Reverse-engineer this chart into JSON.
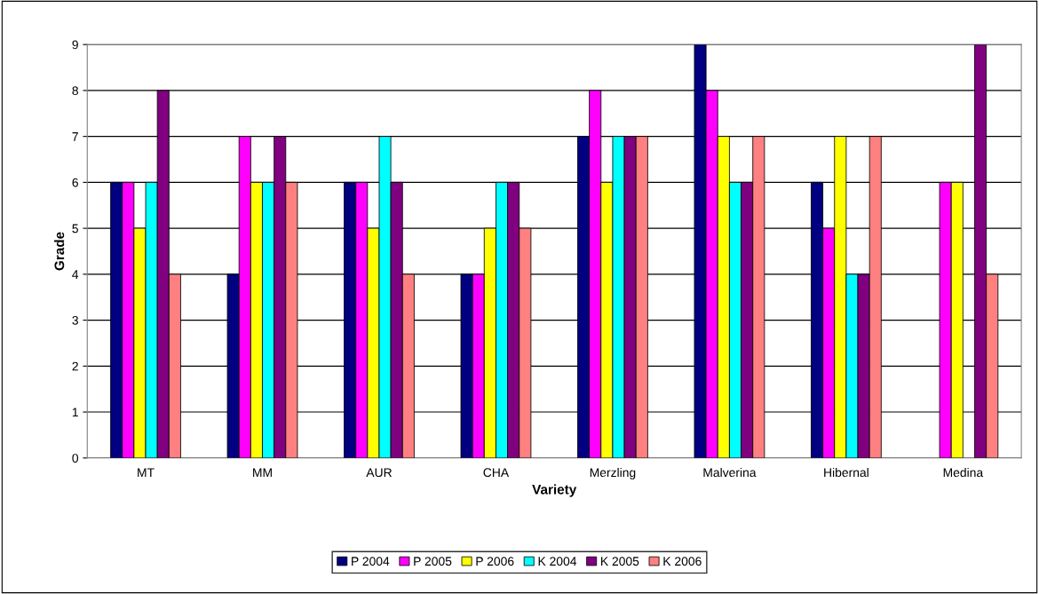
{
  "chart_data": {
    "type": "bar",
    "xlabel": "Variety",
    "ylabel": "Grade",
    "categories": [
      "MT",
      "MM",
      "AUR",
      "CHA",
      "Merzling",
      "Malverina",
      "Hibernal",
      "Medina"
    ],
    "series": [
      {
        "name": "P 2004",
        "color": "#000080",
        "values": [
          6,
          4,
          6,
          4,
          7,
          9,
          6,
          null
        ]
      },
      {
        "name": "P 2005",
        "color": "#ff00ff",
        "values": [
          6,
          7,
          6,
          4,
          8,
          8,
          5,
          6
        ]
      },
      {
        "name": "P 2006",
        "color": "#ffff00",
        "values": [
          5,
          6,
          5,
          5,
          6,
          7,
          7,
          6
        ]
      },
      {
        "name": "K 2004",
        "color": "#00ffff",
        "values": [
          6,
          6,
          7,
          6,
          7,
          6,
          4,
          null
        ]
      },
      {
        "name": "K 2005",
        "color": "#800080",
        "values": [
          8,
          7,
          6,
          6,
          7,
          6,
          4,
          9
        ]
      },
      {
        "name": "K 2006",
        "color": "#ff8080",
        "values": [
          4,
          6,
          4,
          5,
          7,
          7,
          7,
          4
        ]
      }
    ],
    "ylim": [
      0,
      9
    ],
    "yticks": [
      0,
      1,
      2,
      3,
      4,
      5,
      6,
      7,
      8,
      9
    ],
    "grid": "y",
    "legend": "bottom"
  }
}
